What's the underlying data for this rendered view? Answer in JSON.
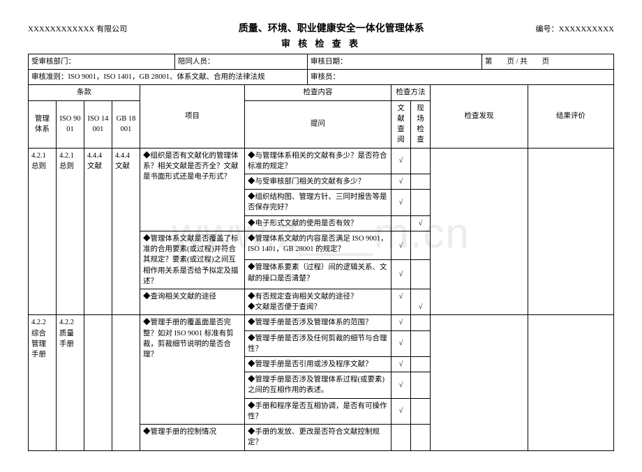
{
  "header": {
    "company": "XXXXXXXXXXXX 有限公司",
    "title": "质量、环境、职业健康安全一体化管理体系",
    "code_label": "编号：",
    "code_value": "XXXXXXXXXX",
    "subtitle": "审 核 检 查 表"
  },
  "info": {
    "dept_label": "受审核部门：",
    "accomp_label": "陪同人员：",
    "date_label": "审核日期：",
    "page_label": "第　　页 / 共　　页",
    "criteria_label": "审核准则：",
    "criteria_value": "ISO 9001，ISO 1401，GB 28001、体系文献、合用的法律法规",
    "auditor_label": "审核员："
  },
  "cols": {
    "clause": "条款",
    "sys": "管理体系",
    "iso9001": "ISO 9001",
    "iso14001": "ISO 14001",
    "gb18001": "GB 18001",
    "item": "项目",
    "check_content": "检查内容",
    "question": "提问",
    "method": "检查方法",
    "doc_review": "文献查阅",
    "site_check": "现场检查",
    "finding": "检查发现",
    "result": "结果评价"
  },
  "rows": [
    {
      "sys": "4.2.1\n总则",
      "c9001": "4.2.1\n总则",
      "c14001": "4.4.4\n文献",
      "c18001": "4.4.4\n文献",
      "item": "◆组织是否有文献化的管理体系？相关文献是否齐全？文献是书面形式还是电子形式？",
      "q": "◆与管理体系相关的文献有多少？是否符合标准的规定？\n◆与受审核部门相关的文献有多少？\n◆组织结构图、管理方针、三同时报告等是否保存完好？\n◆电子形式文献的使用是否有效？",
      "ticks": [
        "√",
        "",
        "√",
        "",
        "√",
        "",
        "",
        "√"
      ]
    },
    {
      "item": "◆管理体系文献是否覆盖了标准的合用要素(或过程)并符合其规定？要素(或过程)之间互相作用关系是否给予拟定及描述？",
      "q": "◆管理体系文献的内容是否满足 ISO 9001，ISO 1401，GB 28001 的规定？\n◆管理体系要素（过程）间的逻辑关系、文献的接口是否清楚？",
      "ticks": [
        "√",
        "",
        "√",
        ""
      ]
    },
    {
      "item": "◆查询相关文献的途径",
      "q": "◆有否规定查询相关文献的途径？\n◆文献是否便于查阅？",
      "ticks": [
        "√",
        "",
        "",
        "√"
      ]
    },
    {
      "sys": "4.2.2\n综合管理手册",
      "c9001": "4.2.2\n质量手册",
      "item": "◆管理手册的覆盖面是否完整？如对 ISO 9001 标准有剪裁，剪裁细节说明的是否合理？",
      "q": "◆管理手册是否涉及管理体系的范围？\n◆管理手册是否涉及任何剪裁的细节与合理性？\n◆管理手册是否引用或涉及程序文献？\n◆管理手册是否涉及管理体系过程(或要素)之间的互相作用的表述。\n◆手册和程序是否互相协调，是否有可操作性？",
      "ticks": [
        "√",
        "",
        "√",
        "",
        "√",
        "",
        "√",
        "",
        "√",
        ""
      ]
    },
    {
      "item": "◆管理手册的控制情况",
      "q": "◆手册的发放、更改是否符合文献控制规定？",
      "ticks": [
        "",
        ""
      ]
    }
  ],
  "watermark": "www.z___m.cn"
}
